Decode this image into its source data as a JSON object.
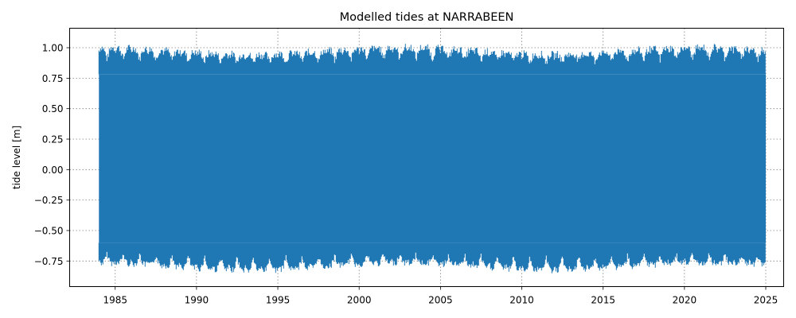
{
  "chart_data": {
    "type": "line",
    "title": "Modelled tides at NARRABEEN",
    "xlabel": "",
    "ylabel": "tide level [m]",
    "xlim": [
      1982.2,
      2026.1
    ],
    "ylim": [
      -0.96,
      1.16
    ],
    "x_ticks": [
      1985,
      1990,
      1995,
      2000,
      2005,
      2010,
      2015,
      2020,
      2025
    ],
    "x_tick_labels": [
      "1985",
      "1990",
      "1995",
      "2000",
      "2005",
      "2010",
      "2015",
      "2020",
      "2025"
    ],
    "y_ticks": [
      -0.75,
      -0.5,
      -0.25,
      0.0,
      0.25,
      0.5,
      0.75,
      1.0
    ],
    "y_tick_labels": [
      "−0.75",
      "−0.50",
      "−0.25",
      "0.00",
      "0.25",
      "0.50",
      "0.75",
      "1.00"
    ],
    "grid": true,
    "series": [
      {
        "color": "#1f77b4",
        "x_start": 1984.0,
        "x_end": 2025.0,
        "core_low": -0.6,
        "core_high": 0.78,
        "max_high": 1.05,
        "min_low": -0.87
      }
    ]
  }
}
